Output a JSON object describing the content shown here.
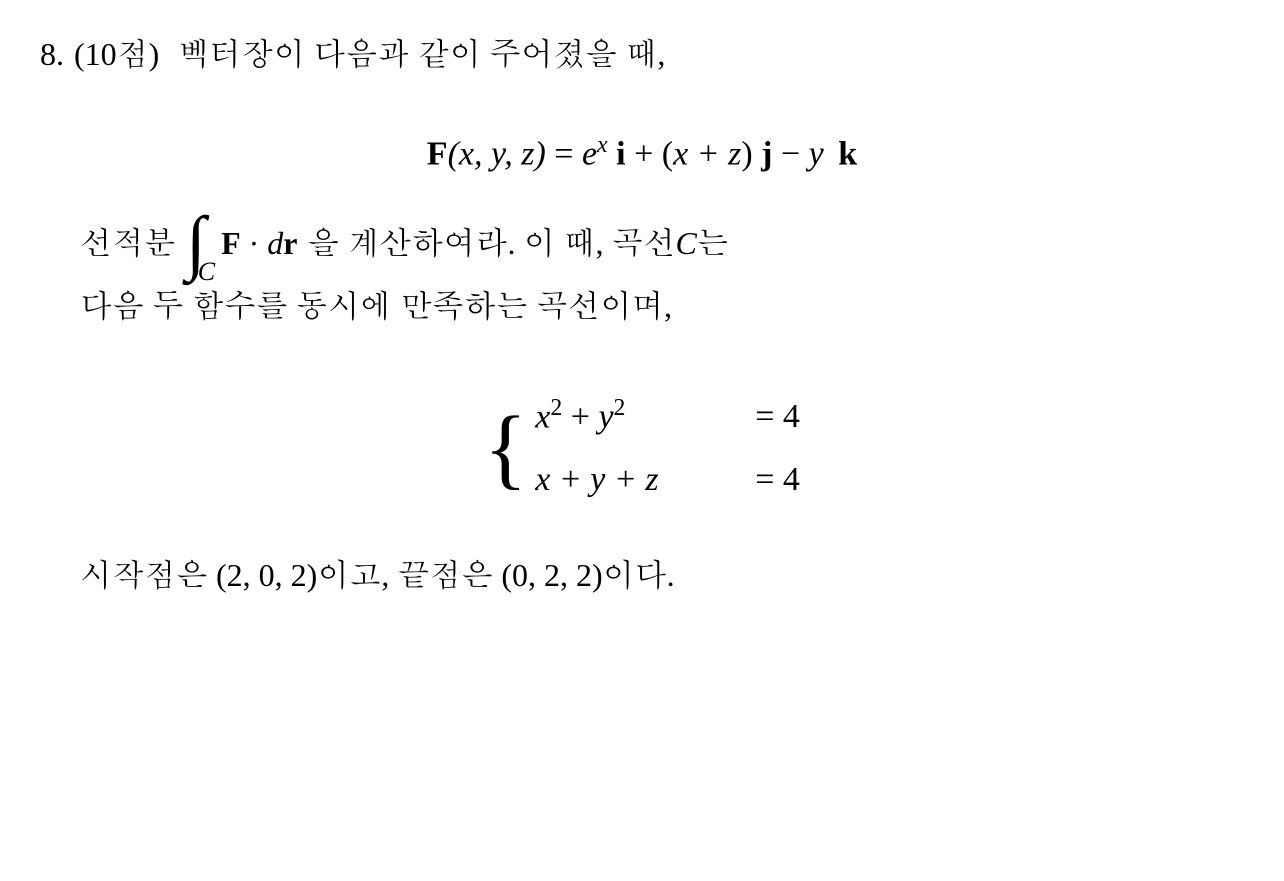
{
  "problem": {
    "number": "8.",
    "points": "(10점)",
    "line1_text": "벡터장이 다음과 같이 주어졌을 때,",
    "vector_field": {
      "F": "F",
      "args": "(x, y, z)",
      "eq": " = ",
      "term1_coef": "e",
      "term1_exp": "x",
      "i": " i",
      "plus1": " + (",
      "term2_inner": "x + z",
      "close_paren": ")",
      "j": " j",
      "minus": " − ",
      "term3_coef": "y",
      "k": " k"
    },
    "line2_pre": "선적분",
    "integral": {
      "symbol": "∫",
      "sub": "C",
      "integrand_F": "F",
      "dot": " · ",
      "dr_d": "d",
      "dr_r": "r"
    },
    "line2_post1": "을 계산하여라. 이 때, 곡선 ",
    "line2_C": "C",
    "line2_post2": "는",
    "line3_text": "다음 두 함수를 동시에 만족하는 곡선이며,",
    "system": {
      "eq1_lhs_x": "x",
      "eq1_lhs_plus": " + ",
      "eq1_lhs_y": "y",
      "eq1_exp": "2",
      "eq1_rhs": "= 4",
      "eq2_lhs": "x + y + z",
      "eq2_rhs": "= 4"
    },
    "line4_pre": "시작점은 ",
    "line4_start": "(2, 0, 2)",
    "line4_mid": "이고, 끝점은 ",
    "line4_end": "(0, 2, 2)",
    "line4_post": "이다."
  },
  "style": {
    "text_color": "#000000",
    "background_color": "#ffffff",
    "base_fontsize": 32,
    "equation_fontsize": 34,
    "integral_fontsize": 72,
    "brace_fontsize": 90
  }
}
